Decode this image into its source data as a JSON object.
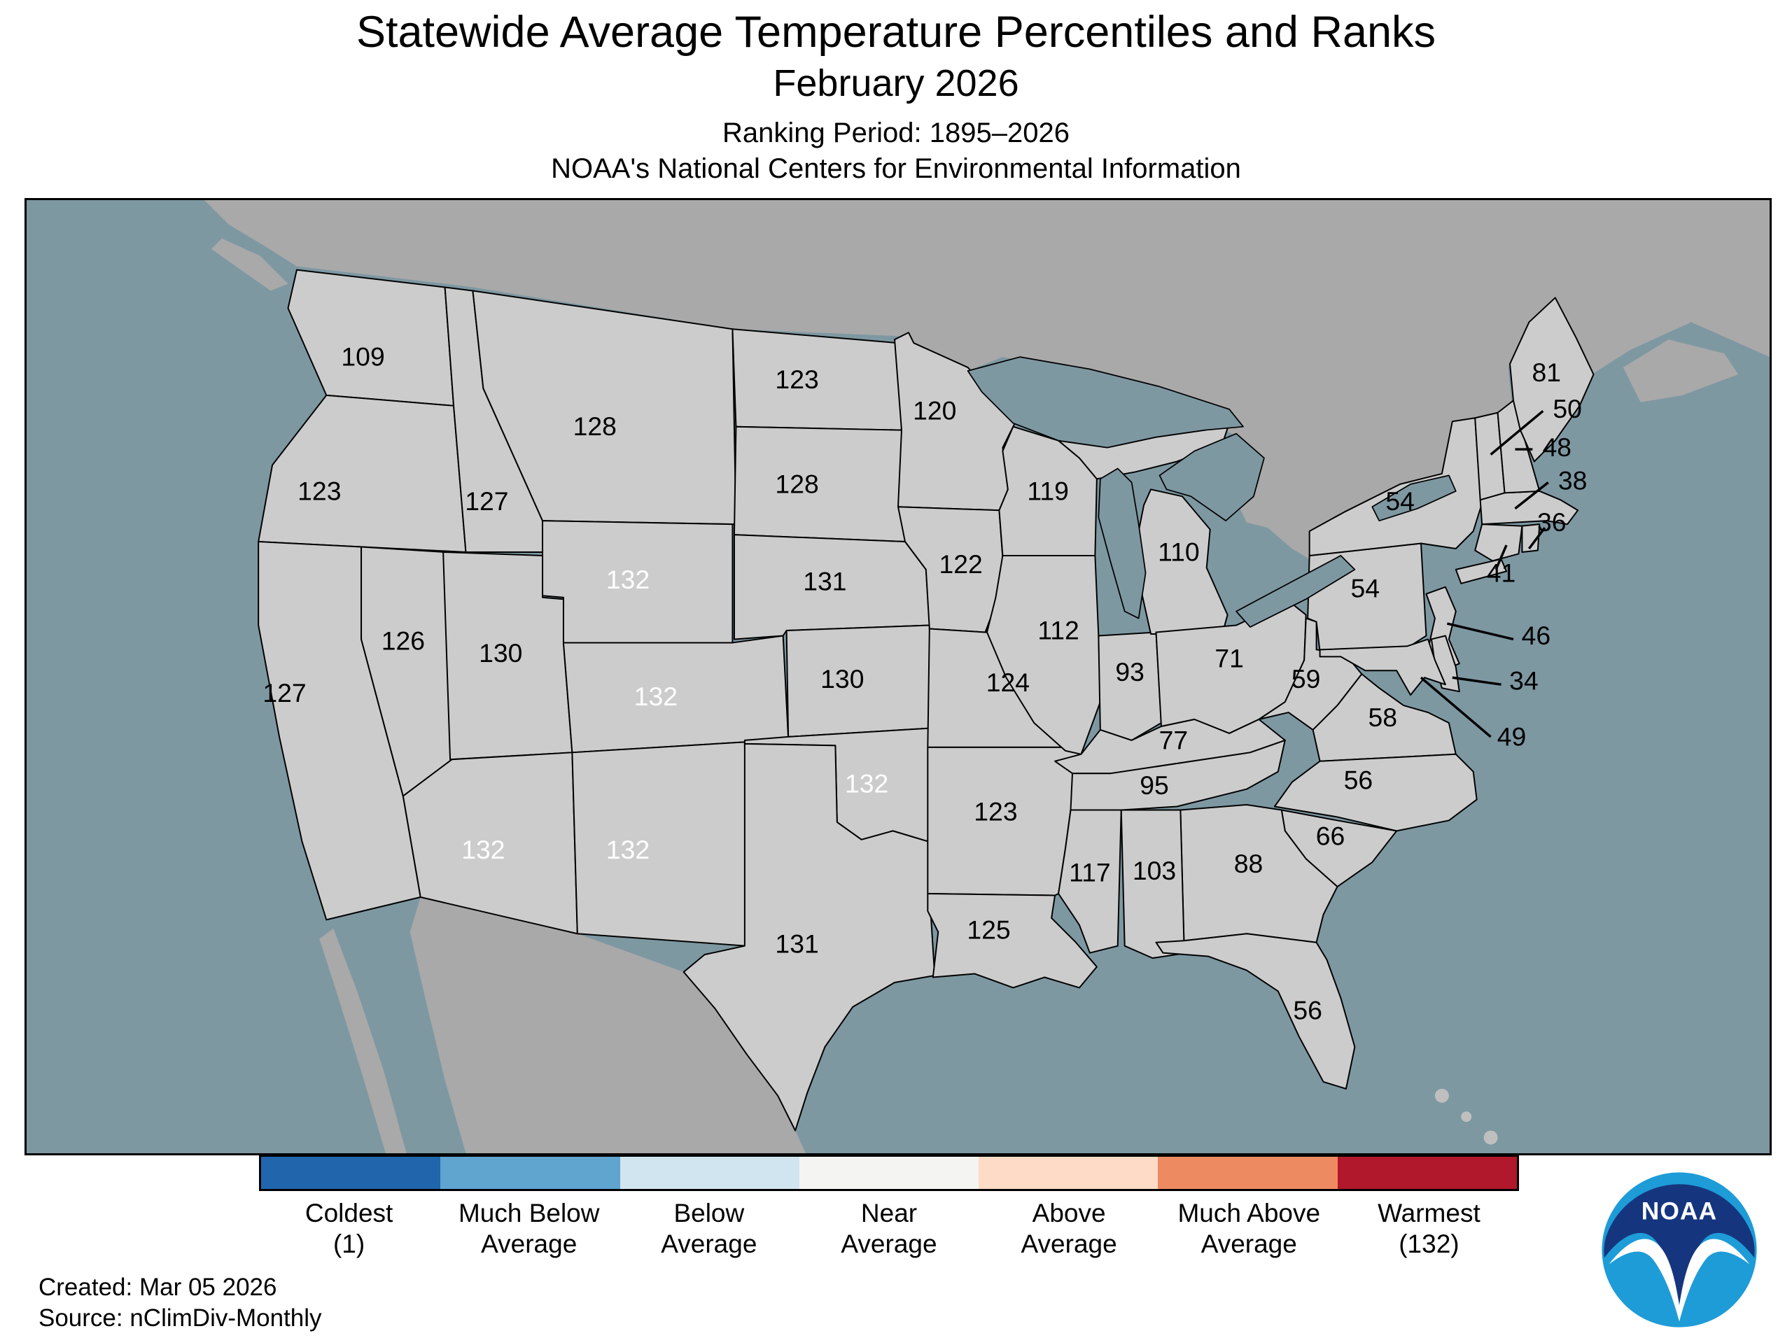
{
  "title": "Statewide Average Temperature Percentiles and Ranks",
  "subtitle": "February 2026",
  "ranking_period": "Ranking Period: 1895–2026",
  "organization": "NOAA's National Centers for Environmental Information",
  "footer": {
    "created": "Created: Mar 05 2026",
    "source": "Source: nClimDiv-Monthly"
  },
  "logo": {
    "text": "NOAA"
  },
  "colors": {
    "coldest": "#2166AC",
    "much_below": "#5FA5D0",
    "below": "#D1E5F0",
    "near": "#F4F4F2",
    "above": "#FDDBC7",
    "much_above": "#EE8A62",
    "warmest": "#B2182B",
    "ocean": "#7E98A2",
    "foreign_land": "#A9A9A9",
    "border": "#000000"
  },
  "legend": {
    "items": [
      {
        "category": "coldest",
        "line1": "Coldest",
        "line2": "(1)"
      },
      {
        "category": "much_below",
        "line1": "Much Below",
        "line2": "Average"
      },
      {
        "category": "below",
        "line1": "Below",
        "line2": "Average"
      },
      {
        "category": "near",
        "line1": "Near",
        "line2": "Average"
      },
      {
        "category": "above",
        "line1": "Above",
        "line2": "Average"
      },
      {
        "category": "much_above",
        "line1": "Much Above",
        "line2": "Average"
      },
      {
        "category": "warmest",
        "line1": "Warmest",
        "line2": "(132)"
      }
    ]
  },
  "map": {
    "states": [
      {
        "id": "WA",
        "name": "Washington",
        "rank": 109,
        "category": "above"
      },
      {
        "id": "OR",
        "name": "Oregon",
        "rank": 123,
        "category": "much_above"
      },
      {
        "id": "CA",
        "name": "California",
        "rank": 127,
        "category": "much_above"
      },
      {
        "id": "NV",
        "name": "Nevada",
        "rank": 126,
        "category": "much_above"
      },
      {
        "id": "ID",
        "name": "Idaho",
        "rank": 127,
        "category": "much_above"
      },
      {
        "id": "UT",
        "name": "Utah",
        "rank": 130,
        "category": "much_above"
      },
      {
        "id": "AZ",
        "name": "Arizona",
        "rank": 132,
        "category": "warmest"
      },
      {
        "id": "MT",
        "name": "Montana",
        "rank": 128,
        "category": "much_above"
      },
      {
        "id": "WY",
        "name": "Wyoming",
        "rank": 132,
        "category": "warmest"
      },
      {
        "id": "CO",
        "name": "Colorado",
        "rank": 132,
        "category": "warmest"
      },
      {
        "id": "NM",
        "name": "New Mexico",
        "rank": 132,
        "category": "warmest"
      },
      {
        "id": "ND",
        "name": "North Dakota",
        "rank": 123,
        "category": "much_above"
      },
      {
        "id": "SD",
        "name": "South Dakota",
        "rank": 128,
        "category": "much_above"
      },
      {
        "id": "NE",
        "name": "Nebraska",
        "rank": 131,
        "category": "much_above"
      },
      {
        "id": "KS",
        "name": "Kansas",
        "rank": 130,
        "category": "much_above"
      },
      {
        "id": "OK",
        "name": "Oklahoma",
        "rank": 132,
        "category": "warmest"
      },
      {
        "id": "TX",
        "name": "Texas",
        "rank": 131,
        "category": "much_above"
      },
      {
        "id": "MN",
        "name": "Minnesota",
        "rank": 120,
        "category": "much_above"
      },
      {
        "id": "IA",
        "name": "Iowa",
        "rank": 122,
        "category": "much_above"
      },
      {
        "id": "MO",
        "name": "Missouri",
        "rank": 124,
        "category": "much_above"
      },
      {
        "id": "AR",
        "name": "Arkansas",
        "rank": 123,
        "category": "much_above"
      },
      {
        "id": "LA",
        "name": "Louisiana",
        "rank": 125,
        "category": "much_above"
      },
      {
        "id": "WI",
        "name": "Wisconsin",
        "rank": 119,
        "category": "above"
      },
      {
        "id": "IL",
        "name": "Illinois",
        "rank": 112,
        "category": "above"
      },
      {
        "id": "IN",
        "name": "Indiana",
        "rank": 93,
        "category": "above"
      },
      {
        "id": "MI",
        "name": "Michigan",
        "rank": 110,
        "category": "above"
      },
      {
        "id": "OH",
        "name": "Ohio",
        "rank": 71,
        "category": "near"
      },
      {
        "id": "KY",
        "name": "Kentucky",
        "rank": 77,
        "category": "near"
      },
      {
        "id": "TN",
        "name": "Tennessee",
        "rank": 95,
        "category": "above"
      },
      {
        "id": "MS",
        "name": "Mississippi",
        "rank": 117,
        "category": "above"
      },
      {
        "id": "AL",
        "name": "Alabama",
        "rank": 103,
        "category": "above"
      },
      {
        "id": "GA",
        "name": "Georgia",
        "rank": 88,
        "category": "near"
      },
      {
        "id": "FL",
        "name": "Florida",
        "rank": 56,
        "category": "near"
      },
      {
        "id": "SC",
        "name": "South Carolina",
        "rank": 66,
        "category": "near"
      },
      {
        "id": "NC",
        "name": "North Carolina",
        "rank": 56,
        "category": "near"
      },
      {
        "id": "VA",
        "name": "Virginia",
        "rank": 58,
        "category": "near"
      },
      {
        "id": "WV",
        "name": "West Virginia",
        "rank": 59,
        "category": "near"
      },
      {
        "id": "PA",
        "name": "Pennsylvania",
        "rank": 54,
        "category": "near"
      },
      {
        "id": "NY",
        "name": "New York",
        "rank": 54,
        "category": "near"
      },
      {
        "id": "NJ",
        "name": "New Jersey",
        "rank": 46,
        "category": "near"
      },
      {
        "id": "DE",
        "name": "Delaware",
        "rank": 34,
        "category": "below"
      },
      {
        "id": "MD",
        "name": "Maryland",
        "rank": 49,
        "category": "near"
      },
      {
        "id": "CT",
        "name": "Connecticut",
        "rank": 41,
        "category": "below"
      },
      {
        "id": "RI",
        "name": "Rhode Island",
        "rank": 36,
        "category": "below"
      },
      {
        "id": "MA",
        "name": "Massachusetts",
        "rank": 38,
        "category": "below"
      },
      {
        "id": "VT",
        "name": "Vermont",
        "rank": 50,
        "category": "near"
      },
      {
        "id": "NH",
        "name": "New Hampshire",
        "rank": 48,
        "category": "near"
      },
      {
        "id": "ME",
        "name": "Maine",
        "rank": 81,
        "category": "near"
      }
    ]
  }
}
